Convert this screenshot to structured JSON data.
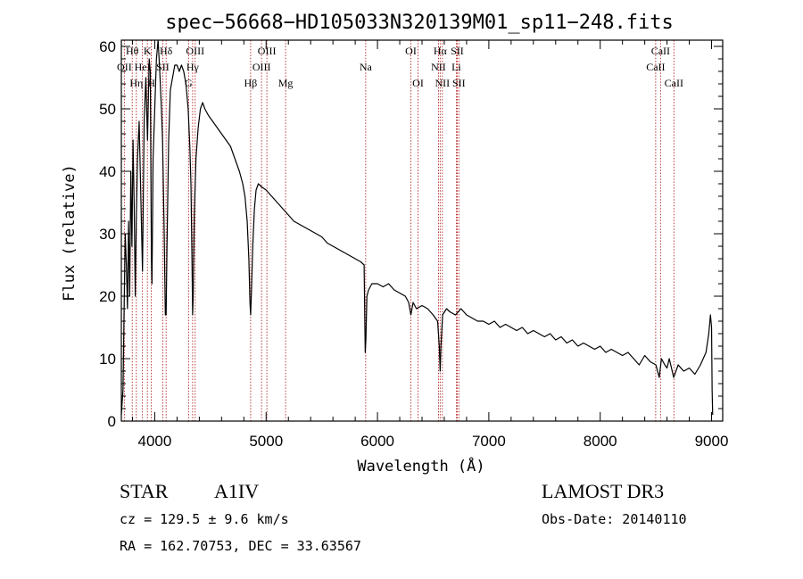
{
  "chart_data": {
    "type": "line",
    "title": "spec−56668−HD105033N320139M01_sp11−248.fits",
    "xlabel": "Wavelength (Å)",
    "ylabel": "Flux (relative)",
    "xlim": [
      3700,
      9100
    ],
    "ylim": [
      0,
      61
    ],
    "xticks": [
      4000,
      5000,
      6000,
      7000,
      8000,
      9000
    ],
    "yticks": [
      0,
      10,
      20,
      30,
      40,
      50,
      60
    ],
    "grid": false,
    "series": [
      {
        "name": "flux",
        "color": "#000000",
        "points": [
          [
            3700,
            1
          ],
          [
            3715,
            5
          ],
          [
            3725,
            18
          ],
          [
            3735,
            30
          ],
          [
            3745,
            25
          ],
          [
            3755,
            18
          ],
          [
            3765,
            32
          ],
          [
            3775,
            20
          ],
          [
            3785,
            40
          ],
          [
            3795,
            28
          ],
          [
            3805,
            45
          ],
          [
            3815,
            35
          ],
          [
            3825,
            20
          ],
          [
            3835,
            33
          ],
          [
            3845,
            42
          ],
          [
            3860,
            48
          ],
          [
            3875,
            36
          ],
          [
            3890,
            24
          ],
          [
            3905,
            48
          ],
          [
            3920,
            55
          ],
          [
            3935,
            45
          ],
          [
            3950,
            58
          ],
          [
            3960,
            56
          ],
          [
            3970,
            26
          ],
          [
            3975,
            22
          ],
          [
            3985,
            42
          ],
          [
            4000,
            50
          ],
          [
            4015,
            58
          ],
          [
            4030,
            62
          ],
          [
            4045,
            56
          ],
          [
            4060,
            50
          ],
          [
            4070,
            45
          ],
          [
            4085,
            30
          ],
          [
            4095,
            17
          ],
          [
            4102,
            17
          ],
          [
            4110,
            28
          ],
          [
            4125,
            45
          ],
          [
            4140,
            53
          ],
          [
            4160,
            55
          ],
          [
            4180,
            57
          ],
          [
            4200,
            57
          ],
          [
            4220,
            56
          ],
          [
            4240,
            57
          ],
          [
            4260,
            56
          ],
          [
            4280,
            54
          ],
          [
            4300,
            50
          ],
          [
            4315,
            44
          ],
          [
            4325,
            38
          ],
          [
            4335,
            25
          ],
          [
            4340,
            17
          ],
          [
            4345,
            20
          ],
          [
            4355,
            33
          ],
          [
            4370,
            42
          ],
          [
            4390,
            47
          ],
          [
            4410,
            50
          ],
          [
            4430,
            51
          ],
          [
            4450,
            50
          ],
          [
            4480,
            49
          ],
          [
            4520,
            48
          ],
          [
            4560,
            47
          ],
          [
            4600,
            46
          ],
          [
            4640,
            45
          ],
          [
            4680,
            44
          ],
          [
            4720,
            42
          ],
          [
            4760,
            40
          ],
          [
            4790,
            38
          ],
          [
            4810,
            36
          ],
          [
            4830,
            32
          ],
          [
            4845,
            26
          ],
          [
            4855,
            19
          ],
          [
            4861,
            17
          ],
          [
            4867,
            20
          ],
          [
            4880,
            28
          ],
          [
            4895,
            34
          ],
          [
            4910,
            37
          ],
          [
            4930,
            38
          ],
          [
            4960,
            37.5
          ],
          [
            5000,
            37
          ],
          [
            5050,
            36
          ],
          [
            5100,
            35
          ],
          [
            5150,
            34
          ],
          [
            5200,
            33
          ],
          [
            5250,
            32
          ],
          [
            5300,
            31.5
          ],
          [
            5350,
            31
          ],
          [
            5400,
            30.5
          ],
          [
            5450,
            30
          ],
          [
            5500,
            29.5
          ],
          [
            5550,
            28.5
          ],
          [
            5600,
            28
          ],
          [
            5650,
            27.5
          ],
          [
            5700,
            27
          ],
          [
            5750,
            26.5
          ],
          [
            5800,
            26
          ],
          [
            5850,
            25.5
          ],
          [
            5880,
            25
          ],
          [
            5890,
            11
          ],
          [
            5896,
            13
          ],
          [
            5905,
            20
          ],
          [
            5920,
            21
          ],
          [
            5950,
            22
          ],
          [
            6000,
            22
          ],
          [
            6050,
            21.5
          ],
          [
            6100,
            22
          ],
          [
            6150,
            21
          ],
          [
            6200,
            20.5
          ],
          [
            6250,
            20
          ],
          [
            6280,
            19
          ],
          [
            6300,
            17
          ],
          [
            6320,
            19
          ],
          [
            6350,
            18
          ],
          [
            6400,
            18.5
          ],
          [
            6450,
            18
          ],
          [
            6500,
            17
          ],
          [
            6540,
            16
          ],
          [
            6555,
            12
          ],
          [
            6563,
            8
          ],
          [
            6570,
            12
          ],
          [
            6585,
            17
          ],
          [
            6620,
            18
          ],
          [
            6650,
            17.5
          ],
          [
            6700,
            17
          ],
          [
            6750,
            18
          ],
          [
            6800,
            17
          ],
          [
            6850,
            16.5
          ],
          [
            6900,
            16
          ],
          [
            6950,
            16
          ],
          [
            7000,
            15.5
          ],
          [
            7050,
            16
          ],
          [
            7100,
            15
          ],
          [
            7150,
            15.5
          ],
          [
            7200,
            15
          ],
          [
            7250,
            14.5
          ],
          [
            7300,
            15
          ],
          [
            7350,
            14
          ],
          [
            7400,
            14.5
          ],
          [
            7450,
            14
          ],
          [
            7500,
            13.5
          ],
          [
            7550,
            14
          ],
          [
            7600,
            13
          ],
          [
            7650,
            13.5
          ],
          [
            7700,
            12.5
          ],
          [
            7750,
            13
          ],
          [
            7800,
            12
          ],
          [
            7850,
            12.5
          ],
          [
            7900,
            12
          ],
          [
            7950,
            11.5
          ],
          [
            8000,
            12
          ],
          [
            8050,
            11
          ],
          [
            8100,
            11.5
          ],
          [
            8150,
            11
          ],
          [
            8200,
            10.5
          ],
          [
            8250,
            11
          ],
          [
            8300,
            10
          ],
          [
            8350,
            9
          ],
          [
            8400,
            10.5
          ],
          [
            8450,
            9.5
          ],
          [
            8500,
            9
          ],
          [
            8530,
            7
          ],
          [
            8550,
            10
          ],
          [
            8580,
            9
          ],
          [
            8600,
            8.5
          ],
          [
            8620,
            10
          ],
          [
            8660,
            7
          ],
          [
            8700,
            9
          ],
          [
            8750,
            8
          ],
          [
            8800,
            8.5
          ],
          [
            8850,
            7.5
          ],
          [
            8900,
            9
          ],
          [
            8950,
            11
          ],
          [
            8975,
            14
          ],
          [
            8990,
            17
          ],
          [
            9000,
            15
          ],
          [
            9005,
            5
          ],
          [
            9010,
            1
          ]
        ]
      }
    ],
    "lines": [
      {
        "name": "OII",
        "x": 3727,
        "row": 1
      },
      {
        "name": "Hθ",
        "x": 3798,
        "row": 0
      },
      {
        "name": "Hη",
        "x": 3835,
        "row": 2
      },
      {
        "name": "HeI",
        "x": 3889,
        "row": 1
      },
      {
        "name": "K",
        "x": 3934,
        "row": 0
      },
      {
        "name": "H",
        "x": 3969,
        "row": 2
      },
      {
        "name": "SII",
        "x": 4072,
        "row": 1
      },
      {
        "name": "Hδ",
        "x": 4102,
        "row": 0
      },
      {
        "name": "G",
        "x": 4304,
        "row": 2
      },
      {
        "name": "Hγ",
        "x": 4340,
        "row": 1
      },
      {
        "name": "OIII",
        "x": 4363,
        "row": 0
      },
      {
        "name": "Hβ",
        "x": 4861,
        "row": 2
      },
      {
        "name": "OIII",
        "x": 4959,
        "row": 1
      },
      {
        "name": "OIII",
        "x": 5007,
        "row": 0
      },
      {
        "name": "Mg",
        "x": 5175,
        "row": 2
      },
      {
        "name": "Na",
        "x": 5894,
        "row": 1
      },
      {
        "name": "OI",
        "x": 6300,
        "row": 0
      },
      {
        "name": "OI",
        "x": 6364,
        "row": 2
      },
      {
        "name": "NII",
        "x": 6548,
        "row": 1
      },
      {
        "name": "Hα",
        "x": 6563,
        "row": 0
      },
      {
        "name": "NII",
        "x": 6583,
        "row": 2
      },
      {
        "name": "Li",
        "x": 6708,
        "row": 1
      },
      {
        "name": "SII",
        "x": 6716,
        "row": 0
      },
      {
        "name": "SII",
        "x": 6731,
        "row": 2
      },
      {
        "name": "CaII",
        "x": 8498,
        "row": 1
      },
      {
        "name": "CaII",
        "x": 8542,
        "row": 0
      },
      {
        "name": "CaII",
        "x": 8662,
        "row": 2
      }
    ]
  },
  "info": {
    "class_label": "STAR",
    "subclass": "A1IV",
    "survey": "LAMOST DR3",
    "cz": "cz = 129.5 ± 9.6 km/s",
    "obs_date": "Obs-Date: 20140110",
    "coords": "RA = 162.70753, DEC =  33.63567"
  }
}
